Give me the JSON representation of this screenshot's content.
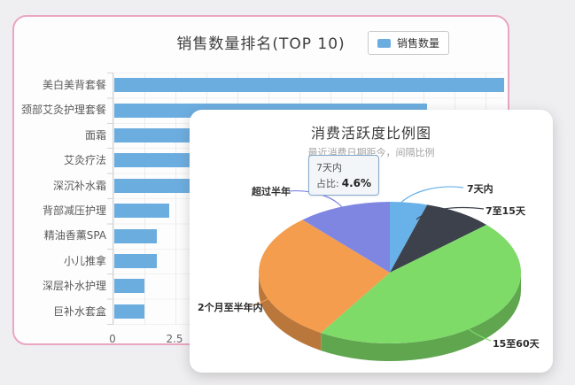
{
  "page": {
    "background": "#efeef0"
  },
  "bar_panel": {
    "title": "销售数量排名(TOP 10)",
    "legend": {
      "label": "销售数量",
      "swatch_color": "#6cade0"
    },
    "border_color": "#eba6c2"
  },
  "pie_panel": {
    "title": "消费活跃度比例图",
    "subtitle": "最近消费日期距今，间隔比例",
    "tooltip": {
      "name": "7天内",
      "label": "占比:",
      "value": "4.6%"
    }
  },
  "chart_data": [
    {
      "type": "bar",
      "orientation": "horizontal",
      "title": "销售数量排名(TOP 10)",
      "series_name": "销售数量",
      "categories": [
        "美白美背套餐",
        "颈部艾灸护理套餐",
        "面霜",
        "艾灸疗法",
        "深沉补水霜",
        "背部减压护理",
        "精油香薰SPA",
        "小儿推拿",
        "深层补水护理",
        "巨补水套盒"
      ],
      "values": [
        15.7,
        12.6,
        9,
        7,
        5,
        2.2,
        1.7,
        1.7,
        1.2,
        1.2
      ],
      "visible_x_ticks": [
        "0",
        "2.5"
      ],
      "x_tick_interval": 2.5,
      "bar_color": "#6cade0",
      "grid": true,
      "legend_position": "top-right"
    },
    {
      "type": "pie",
      "style": "3d",
      "title": "消费活跃度比例图",
      "subtitle": "最近消费日期距今，间隔比例",
      "labels": [
        "7天内",
        "7至15天",
        "15至60天",
        "2个月至半年内",
        "超过半年"
      ],
      "values": [
        4.6,
        8.6,
        45.6,
        29.6,
        11.6
      ],
      "unit": "percent",
      "colors": [
        "#68b1e9",
        "#3c414c",
        "#7edb68",
        "#f49d4e",
        "#7f86e2"
      ],
      "tooltip": {
        "name": "7天内",
        "label": "占比:",
        "value": "4.6%"
      }
    }
  ]
}
